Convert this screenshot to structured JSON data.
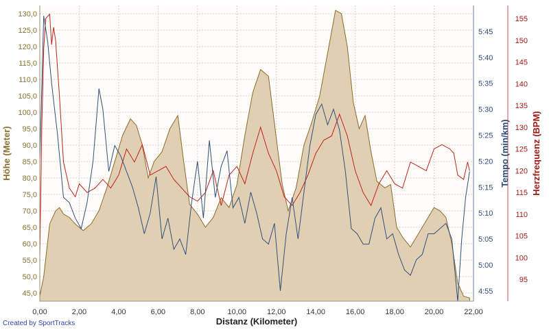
{
  "chart_data": {
    "type": "area",
    "credit": "Created by SportTracks",
    "x_axis": {
      "label": "Distanz (Kilometer)",
      "range": [
        0,
        22.0
      ],
      "ticks": [
        "0,00",
        "2,00",
        "4,00",
        "6,00",
        "8,00",
        "10,00",
        "12,00",
        "14,00",
        "16,00",
        "18,00",
        "20,00",
        "22,00"
      ]
    },
    "y_axes": {
      "altitude": {
        "label": "Höhe (Meter)",
        "range": [
          42.5,
          132.5
        ],
        "ticks": [
          "45,0",
          "50,0",
          "55,0",
          "60,0",
          "65,0",
          "70,0",
          "75,0",
          "80,0",
          "85,0",
          "90,0",
          "95,0",
          "100,0",
          "105,0",
          "110,0",
          "115,0",
          "120,0",
          "125,0",
          "130,0"
        ]
      },
      "tempo": {
        "label": "Tempo (min/km)",
        "range_seconds": [
          293,
          350
        ],
        "ticks": [
          "4:55",
          "5:00",
          "5:05",
          "5:10",
          "5:15",
          "5:20",
          "5:25",
          "5:30",
          "5:35",
          "5:40",
          "5:45"
        ]
      },
      "heart_rate": {
        "label": "Herzfrequenz (BPM)",
        "range": [
          90,
          158
        ],
        "ticks": [
          "95",
          "100",
          "105",
          "110",
          "115",
          "120",
          "125",
          "130",
          "135",
          "140",
          "145",
          "150",
          "155"
        ]
      }
    },
    "grid": true,
    "colors": {
      "altitude_fill": "#e0cfb2",
      "altitude_line": "#8c6a2b",
      "tempo_line": "#304f7e",
      "heart_rate_line": "#c0201b",
      "background": "#fdfcf8",
      "grid": "#d4d4d4"
    },
    "series": [
      {
        "name": "Höhe",
        "x": [
          0,
          0.2,
          0.5,
          0.8,
          1.0,
          1.2,
          1.5,
          1.8,
          2.2,
          2.6,
          3.0,
          3.4,
          3.8,
          4.2,
          4.6,
          4.9,
          5.2,
          5.5,
          5.8,
          6.2,
          6.6,
          7.0,
          7.3,
          7.6,
          8.0,
          8.4,
          8.8,
          9.2,
          9.6,
          10.0,
          10.4,
          10.8,
          11.2,
          11.6,
          12.0,
          12.3,
          12.6,
          13.0,
          13.4,
          13.8,
          14.2,
          14.6,
          15.0,
          15.3,
          15.6,
          15.9,
          16.2,
          16.5,
          16.8,
          17.1,
          17.5,
          17.8,
          18.1,
          18.4,
          18.8,
          19.2,
          19.6,
          20.0,
          20.3,
          20.6,
          20.9,
          21.2,
          21.5,
          21.8
        ],
        "values": [
          44,
          50,
          66,
          70,
          71,
          69,
          68,
          66,
          64,
          66,
          70,
          77,
          85,
          93,
          98,
          96,
          90,
          80,
          85,
          88,
          95,
          99,
          85,
          72,
          69,
          65,
          68,
          74,
          71,
          78,
          93,
          106,
          113,
          111,
          92,
          78,
          70,
          77,
          90,
          97,
          105,
          118,
          131,
          130,
          120,
          103,
          95,
          99,
          88,
          79,
          77,
          78,
          65,
          62,
          59,
          63,
          67,
          71,
          70,
          68,
          60,
          48,
          44,
          43.5
        ]
      },
      {
        "name": "Tempo",
        "x": [
          0,
          0.2,
          0.4,
          0.6,
          0.9,
          1.2,
          1.5,
          1.8,
          2.1,
          2.4,
          2.7,
          3.0,
          3.2,
          3.5,
          3.8,
          4.1,
          4.4,
          4.7,
          5.0,
          5.3,
          5.6,
          5.9,
          6.2,
          6.5,
          6.8,
          7.1,
          7.4,
          7.7,
          8.0,
          8.3,
          8.6,
          8.9,
          9.2,
          9.5,
          9.8,
          10.1,
          10.4,
          10.7,
          11.0,
          11.3,
          11.6,
          11.9,
          12.2,
          12.5,
          12.8,
          13.1,
          13.4,
          13.7,
          14.0,
          14.3,
          14.6,
          14.9,
          15.2,
          15.5,
          15.8,
          16.1,
          16.4,
          16.7,
          17.0,
          17.3,
          17.6,
          17.9,
          18.2,
          18.5,
          18.8,
          19.1,
          19.4,
          19.7,
          20.0,
          20.3,
          20.6,
          20.9,
          21.2,
          21.4,
          21.6,
          21.8
        ],
        "values": [
          320,
          348,
          343,
          335,
          325,
          313,
          312,
          309,
          307,
          312,
          320,
          334,
          330,
          318,
          323,
          321,
          318,
          315,
          311,
          306,
          310,
          317,
          305,
          309,
          303,
          305,
          302,
          312,
          320,
          309,
          324,
          313,
          319,
          322,
          311,
          313,
          308,
          314,
          310,
          305,
          304,
          308,
          295,
          306,
          313,
          305,
          314,
          323,
          329,
          331,
          327,
          330,
          326,
          318,
          307,
          306,
          304,
          304,
          309,
          311,
          305,
          306,
          302,
          299,
          298,
          301,
          302,
          306,
          306,
          307,
          308,
          305,
          293,
          305,
          313,
          318
        ]
      },
      {
        "name": "Herzfrequenz",
        "x": [
          0,
          0.1,
          0.2,
          0.3,
          0.5,
          0.6,
          0.7,
          0.8,
          1.0,
          1.2,
          1.5,
          1.8,
          2.0,
          2.4,
          2.8,
          3.2,
          3.6,
          4.0,
          4.4,
          4.8,
          5.2,
          5.6,
          6.0,
          6.4,
          6.8,
          7.2,
          7.6,
          8.0,
          8.4,
          8.8,
          9.2,
          9.6,
          10.0,
          10.4,
          10.8,
          11.2,
          11.6,
          12.0,
          12.4,
          12.8,
          13.2,
          13.6,
          14.0,
          14.4,
          14.8,
          15.2,
          15.6,
          16.0,
          16.4,
          16.8,
          17.2,
          17.6,
          18.0,
          18.4,
          18.8,
          19.2,
          19.6,
          20.0,
          20.4,
          20.8,
          21.0,
          21.2,
          21.5,
          21.7,
          21.8
        ],
        "values": [
          100,
          130,
          148,
          155,
          156,
          149,
          153,
          150,
          137,
          122,
          116,
          114,
          117,
          115,
          116,
          118,
          116,
          119,
          125,
          122,
          126,
          119,
          120,
          121,
          118,
          116,
          114,
          113,
          115,
          120,
          112,
          119,
          121,
          117,
          124,
          130,
          124,
          120,
          114,
          112,
          115,
          119,
          124,
          127,
          128,
          133,
          128,
          120,
          115,
          112,
          117,
          120,
          117,
          116,
          122,
          121,
          120,
          125,
          126,
          125,
          124,
          119,
          118,
          122,
          120
        ]
      }
    ]
  }
}
